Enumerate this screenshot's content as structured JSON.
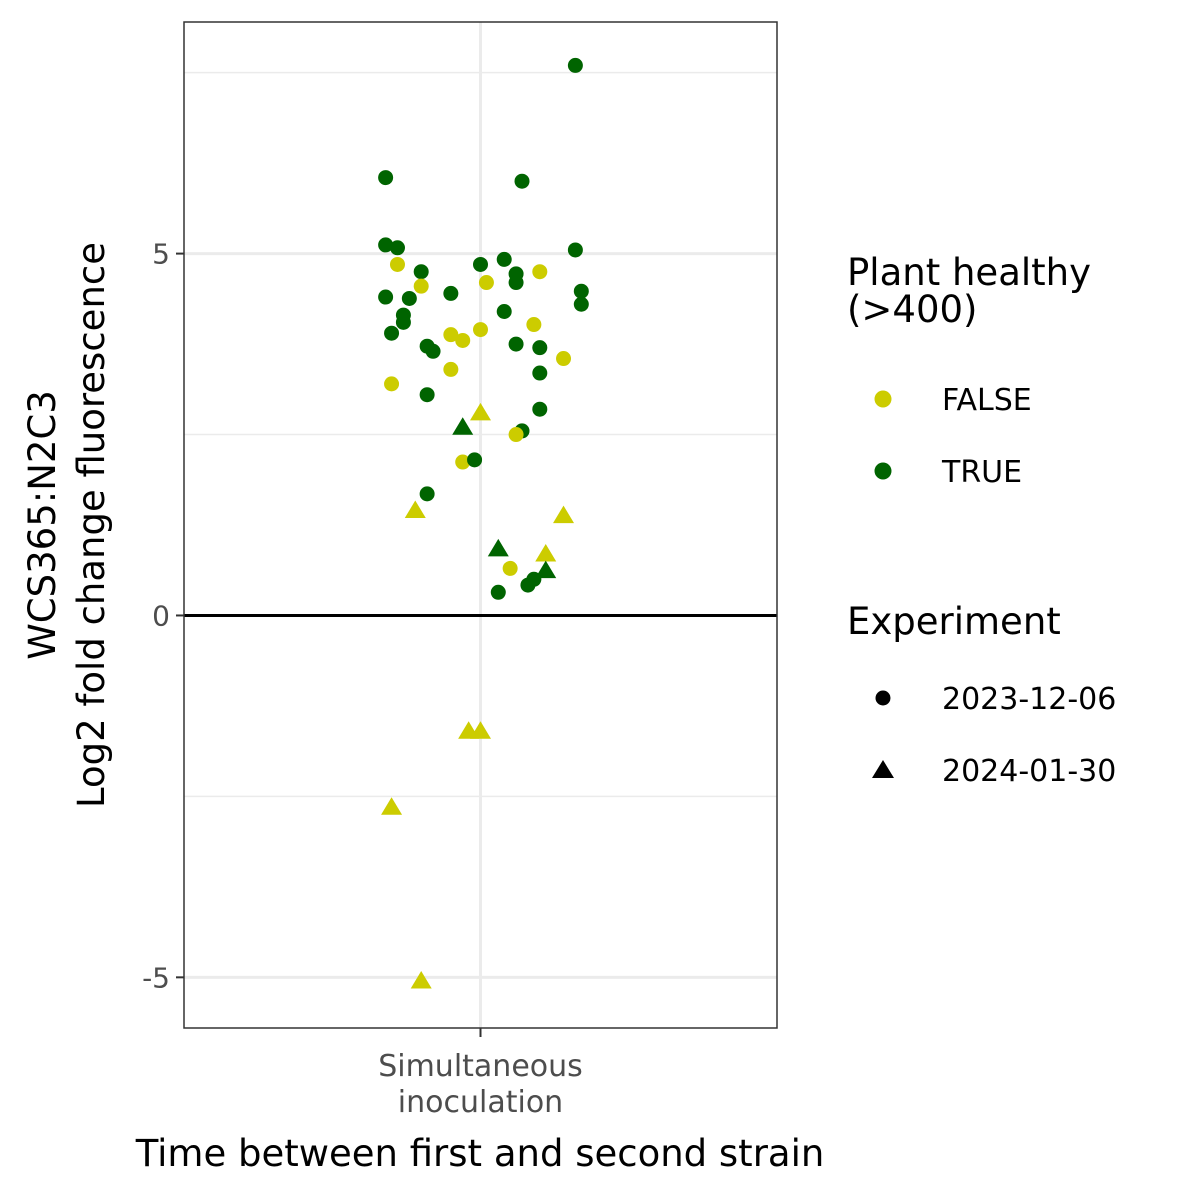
{
  "chart_data": {
    "type": "scatter",
    "title": "",
    "xlabel": "Time between first and second strain",
    "ylabel_lines": [
      "WCS365:N2C3",
      "Log2 fold change fluorescence"
    ],
    "categories": [
      [
        "Simultaneous",
        "inoculation"
      ]
    ],
    "ylim": [
      -5.7,
      8.2
    ],
    "yticks": [
      -5,
      0,
      5
    ],
    "ytick_labels": [
      "-5",
      "0",
      "5"
    ],
    "minor_gridlines_y": [
      -2.5,
      2.5,
      7.5
    ],
    "reference_line_y": 0,
    "grid": true,
    "legend_position": "right",
    "colors": {
      "FALSE": "#cccc00",
      "TRUE": "#006400"
    },
    "legends": [
      {
        "title_lines": [
          "Plant healthy",
          "(>400)"
        ],
        "kind": "color",
        "entries": [
          {
            "label": "FALSE",
            "color": "#cccc00"
          },
          {
            "label": "TRUE",
            "color": "#006400"
          }
        ]
      },
      {
        "title_lines": [
          "Experiment"
        ],
        "kind": "shape",
        "entries": [
          {
            "label": "2023-12-06",
            "shape": "circle"
          },
          {
            "label": "2024-01-30",
            "shape": "triangle"
          }
        ]
      }
    ],
    "points": [
      {
        "x": -0.16,
        "y": 6.05,
        "healthy": "TRUE",
        "experiment": "2023-12-06"
      },
      {
        "x": 0.07,
        "y": 6.0,
        "healthy": "TRUE",
        "experiment": "2023-12-06"
      },
      {
        "x": 0.16,
        "y": 7.6,
        "healthy": "TRUE",
        "experiment": "2023-12-06"
      },
      {
        "x": -0.16,
        "y": 5.12,
        "healthy": "TRUE",
        "experiment": "2023-12-06"
      },
      {
        "x": -0.14,
        "y": 5.08,
        "healthy": "TRUE",
        "experiment": "2023-12-06"
      },
      {
        "x": 0.16,
        "y": 5.05,
        "healthy": "TRUE",
        "experiment": "2023-12-06"
      },
      {
        "x": -0.14,
        "y": 4.85,
        "healthy": "FALSE",
        "experiment": "2023-12-06"
      },
      {
        "x": 0.0,
        "y": 4.85,
        "healthy": "TRUE",
        "experiment": "2023-12-06"
      },
      {
        "x": 0.04,
        "y": 4.92,
        "healthy": "TRUE",
        "experiment": "2023-12-06"
      },
      {
        "x": -0.1,
        "y": 4.75,
        "healthy": "TRUE",
        "experiment": "2023-12-06"
      },
      {
        "x": 0.06,
        "y": 4.72,
        "healthy": "TRUE",
        "experiment": "2023-12-06"
      },
      {
        "x": 0.1,
        "y": 4.75,
        "healthy": "FALSE",
        "experiment": "2023-12-06"
      },
      {
        "x": 0.06,
        "y": 4.6,
        "healthy": "TRUE",
        "experiment": "2023-12-06"
      },
      {
        "x": 0.01,
        "y": 4.6,
        "healthy": "FALSE",
        "experiment": "2023-12-06"
      },
      {
        "x": -0.1,
        "y": 4.55,
        "healthy": "FALSE",
        "experiment": "2023-12-06"
      },
      {
        "x": -0.05,
        "y": 4.45,
        "healthy": "TRUE",
        "experiment": "2023-12-06"
      },
      {
        "x": 0.17,
        "y": 4.48,
        "healthy": "TRUE",
        "experiment": "2023-12-06"
      },
      {
        "x": -0.16,
        "y": 4.4,
        "healthy": "TRUE",
        "experiment": "2023-12-06"
      },
      {
        "x": -0.12,
        "y": 4.38,
        "healthy": "TRUE",
        "experiment": "2023-12-06"
      },
      {
        "x": 0.17,
        "y": 4.3,
        "healthy": "TRUE",
        "experiment": "2023-12-06"
      },
      {
        "x": 0.04,
        "y": 4.2,
        "healthy": "TRUE",
        "experiment": "2023-12-06"
      },
      {
        "x": -0.13,
        "y": 4.15,
        "healthy": "TRUE",
        "experiment": "2023-12-06"
      },
      {
        "x": -0.13,
        "y": 4.05,
        "healthy": "TRUE",
        "experiment": "2023-12-06"
      },
      {
        "x": 0.09,
        "y": 4.02,
        "healthy": "FALSE",
        "experiment": "2023-12-06"
      },
      {
        "x": 0.0,
        "y": 3.95,
        "healthy": "FALSE",
        "experiment": "2023-12-06"
      },
      {
        "x": -0.15,
        "y": 3.9,
        "healthy": "TRUE",
        "experiment": "2023-12-06"
      },
      {
        "x": -0.05,
        "y": 3.88,
        "healthy": "FALSE",
        "experiment": "2023-12-06"
      },
      {
        "x": -0.03,
        "y": 3.8,
        "healthy": "FALSE",
        "experiment": "2023-12-06"
      },
      {
        "x": 0.06,
        "y": 3.75,
        "healthy": "TRUE",
        "experiment": "2023-12-06"
      },
      {
        "x": -0.09,
        "y": 3.72,
        "healthy": "TRUE",
        "experiment": "2023-12-06"
      },
      {
        "x": 0.1,
        "y": 3.7,
        "healthy": "TRUE",
        "experiment": "2023-12-06"
      },
      {
        "x": -0.08,
        "y": 3.65,
        "healthy": "TRUE",
        "experiment": "2023-12-06"
      },
      {
        "x": 0.14,
        "y": 3.55,
        "healthy": "FALSE",
        "experiment": "2023-12-06"
      },
      {
        "x": -0.05,
        "y": 3.4,
        "healthy": "FALSE",
        "experiment": "2023-12-06"
      },
      {
        "x": 0.1,
        "y": 3.35,
        "healthy": "TRUE",
        "experiment": "2023-12-06"
      },
      {
        "x": -0.15,
        "y": 3.2,
        "healthy": "FALSE",
        "experiment": "2023-12-06"
      },
      {
        "x": -0.09,
        "y": 3.05,
        "healthy": "TRUE",
        "experiment": "2023-12-06"
      },
      {
        "x": 0.1,
        "y": 2.85,
        "healthy": "TRUE",
        "experiment": "2023-12-06"
      },
      {
        "x": 0.0,
        "y": 2.8,
        "healthy": "FALSE",
        "experiment": "2024-01-30"
      },
      {
        "x": -0.03,
        "y": 2.6,
        "healthy": "TRUE",
        "experiment": "2024-01-30"
      },
      {
        "x": 0.07,
        "y": 2.55,
        "healthy": "TRUE",
        "experiment": "2023-12-06"
      },
      {
        "x": 0.06,
        "y": 2.5,
        "healthy": "FALSE",
        "experiment": "2023-12-06"
      },
      {
        "x": -0.03,
        "y": 2.12,
        "healthy": "FALSE",
        "experiment": "2023-12-06"
      },
      {
        "x": -0.01,
        "y": 2.15,
        "healthy": "TRUE",
        "experiment": "2023-12-06"
      },
      {
        "x": -0.09,
        "y": 1.68,
        "healthy": "TRUE",
        "experiment": "2023-12-06"
      },
      {
        "x": -0.11,
        "y": 1.45,
        "healthy": "FALSE",
        "experiment": "2024-01-30"
      },
      {
        "x": 0.14,
        "y": 1.38,
        "healthy": "FALSE",
        "experiment": "2024-01-30"
      },
      {
        "x": 0.03,
        "y": 0.92,
        "healthy": "TRUE",
        "experiment": "2024-01-30"
      },
      {
        "x": 0.11,
        "y": 0.85,
        "healthy": "FALSE",
        "experiment": "2024-01-30"
      },
      {
        "x": 0.05,
        "y": 0.65,
        "healthy": "FALSE",
        "experiment": "2023-12-06"
      },
      {
        "x": 0.11,
        "y": 0.62,
        "healthy": "TRUE",
        "experiment": "2024-01-30"
      },
      {
        "x": 0.09,
        "y": 0.5,
        "healthy": "TRUE",
        "experiment": "2023-12-06"
      },
      {
        "x": 0.08,
        "y": 0.42,
        "healthy": "TRUE",
        "experiment": "2023-12-06"
      },
      {
        "x": 0.03,
        "y": 0.32,
        "healthy": "TRUE",
        "experiment": "2023-12-06"
      },
      {
        "x": -0.02,
        "y": -1.6,
        "healthy": "FALSE",
        "experiment": "2024-01-30"
      },
      {
        "x": 0.0,
        "y": -1.6,
        "healthy": "FALSE",
        "experiment": "2024-01-30"
      },
      {
        "x": -0.15,
        "y": -2.65,
        "healthy": "FALSE",
        "experiment": "2024-01-30"
      },
      {
        "x": -0.1,
        "y": -5.05,
        "healthy": "FALSE",
        "experiment": "2024-01-30"
      }
    ]
  }
}
